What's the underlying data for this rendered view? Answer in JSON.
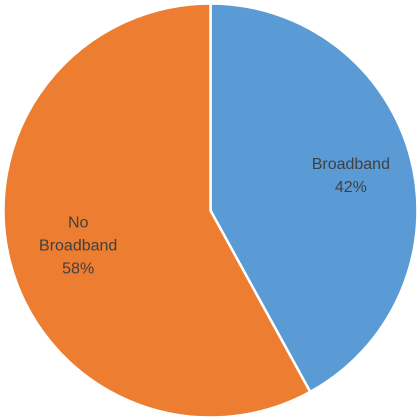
{
  "chart_data": {
    "type": "pie",
    "title": "",
    "slices": [
      {
        "label_lines": [
          "Broadband"
        ],
        "percent_text": "42%",
        "value": 42,
        "color": "#5b9bd5"
      },
      {
        "label_lines": [
          "No",
          "Broadband"
        ],
        "percent_text": "58%",
        "value": 58,
        "color": "#ed7d31"
      }
    ],
    "start_angle_deg": 0,
    "direction": "clockwise",
    "separator_color": "#ffffff",
    "legend": "none"
  }
}
